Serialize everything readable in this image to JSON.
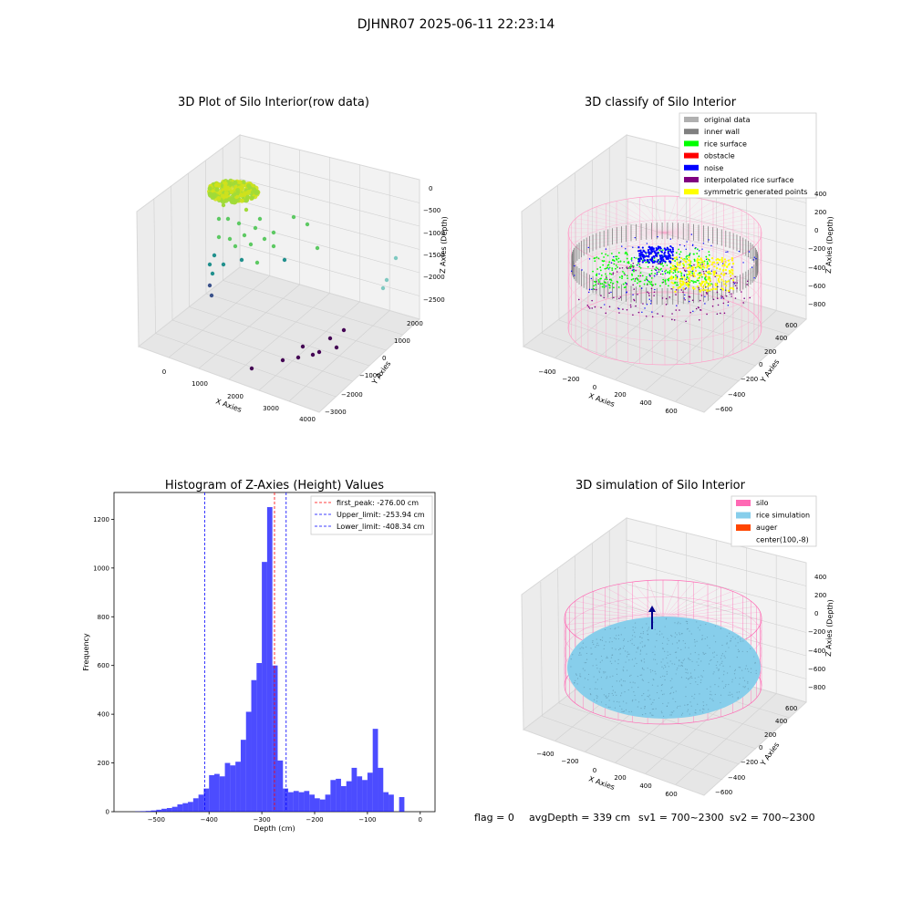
{
  "figure": {
    "suptitle": "DJHNR07 2025-06-11 22:23:14",
    "footer": {
      "flag": "flag = 0",
      "avg_depth": "avgDepth = 339 cm",
      "sv1": "sv1 = 700~2300",
      "sv2": "sv2 = 700~2300"
    }
  },
  "chart_data": [
    {
      "type": "scatter",
      "title": "3D Plot of Silo Interior(row data)",
      "xlabel": "X Axies",
      "ylabel": "Y Axies",
      "zlabel": "Z Axies (Depth)",
      "x_ticks": [
        "0",
        "1000",
        "2000",
        "3000",
        "4000"
      ],
      "y_ticks": [
        "−3000",
        "−2000",
        "−1000",
        "0",
        "1000",
        "2000"
      ],
      "z_ticks": [
        "0",
        "−500",
        "−1000",
        "−1500",
        "−2000",
        "−2500"
      ],
      "colormap": "viridis"
    },
    {
      "type": "scatter",
      "title": "3D classify of Silo Interior",
      "xlabel": "X Axies",
      "ylabel": "Y Axies",
      "zlabel": "Z Axies (Depth)",
      "x_ticks": [
        "−400",
        "−200",
        "0",
        "200",
        "400",
        "600"
      ],
      "y_ticks": [
        "−600",
        "−400",
        "−200",
        "0",
        "200",
        "400",
        "600"
      ],
      "z_ticks": [
        "−800",
        "−600",
        "−400",
        "−200",
        "0",
        "200",
        "400"
      ],
      "legend_position": "top-right",
      "legend": [
        {
          "label": "original data",
          "color": "#b0b0b0"
        },
        {
          "label": "inner wall",
          "color": "#808080"
        },
        {
          "label": "rice surface",
          "color": "#00ff00"
        },
        {
          "label": "obstacle",
          "color": "#ff0000"
        },
        {
          "label": "noise",
          "color": "#0000ff"
        },
        {
          "label": "interpolated rice surface",
          "color": "#800080"
        },
        {
          "label": "symmetric generated points",
          "color": "#ffff00"
        }
      ]
    },
    {
      "type": "bar",
      "title": "Histogram of Z-Axies (Height) Values",
      "xlabel": "Depth (cm)",
      "ylabel": "Frequency",
      "xlim": [
        -580,
        28
      ],
      "ylim": [
        0,
        1310
      ],
      "x_ticks": [
        -500,
        -400,
        -300,
        -200,
        -100,
        0
      ],
      "y_ticks": [
        0,
        200,
        400,
        600,
        800,
        1000,
        1200
      ],
      "bin_width": 10,
      "bin_starts": [
        -540,
        -530,
        -520,
        -510,
        -500,
        -490,
        -480,
        -470,
        -460,
        -450,
        -440,
        -430,
        -420,
        -410,
        -400,
        -390,
        -380,
        -370,
        -360,
        -350,
        -340,
        -330,
        -320,
        -310,
        -300,
        -290,
        -280,
        -270,
        -260,
        -250,
        -240,
        -230,
        -220,
        -210,
        -200,
        -190,
        -180,
        -170,
        -160,
        -150,
        -140,
        -130,
        -120,
        -110,
        -100,
        -90,
        -80,
        -70,
        -60,
        -50,
        -40,
        -30,
        -20,
        -10,
        0
      ],
      "values": [
        1,
        2,
        3,
        5,
        8,
        12,
        15,
        20,
        30,
        35,
        40,
        55,
        70,
        95,
        150,
        155,
        145,
        200,
        190,
        205,
        295,
        410,
        540,
        610,
        1025,
        1250,
        600,
        210,
        95,
        80,
        85,
        80,
        85,
        70,
        55,
        50,
        70,
        130,
        135,
        105,
        125,
        180,
        145,
        130,
        160,
        340,
        180,
        80,
        70,
        0,
        60,
        0,
        0,
        0,
        0
      ],
      "color": "#0000ff",
      "lines": [
        {
          "label": "first_peak: -276.00 cm",
          "x": -276.0,
          "color": "#ff0000"
        },
        {
          "label": "Upper_limit: -253.94 cm",
          "x": -253.94,
          "color": "#0000ff"
        },
        {
          "label": "Lower_limit: -408.34 cm",
          "x": -408.34,
          "color": "#0000ff"
        }
      ],
      "legend_position": "top-right"
    },
    {
      "type": "scatter",
      "title": "3D simulation of Silo Interior",
      "xlabel": "X Axies",
      "ylabel": "Y Axies",
      "zlabel": "Z Axies (Depth)",
      "x_ticks": [
        "−400",
        "−200",
        "0",
        "200",
        "400",
        "600"
      ],
      "y_ticks": [
        "−600",
        "−400",
        "−200",
        "0",
        "200",
        "400",
        "600"
      ],
      "z_ticks": [
        "−800",
        "−600",
        "−400",
        "−200",
        "0",
        "200",
        "400"
      ],
      "legend_position": "top-right",
      "legend": [
        {
          "label": "silo",
          "color": "#ff69b4"
        },
        {
          "label": "rice simulation",
          "color": "#87ceeb"
        },
        {
          "label": "auger",
          "color": "#ff4500"
        },
        {
          "label": "center(100,-8)",
          "color": "#ffffff"
        }
      ]
    }
  ]
}
